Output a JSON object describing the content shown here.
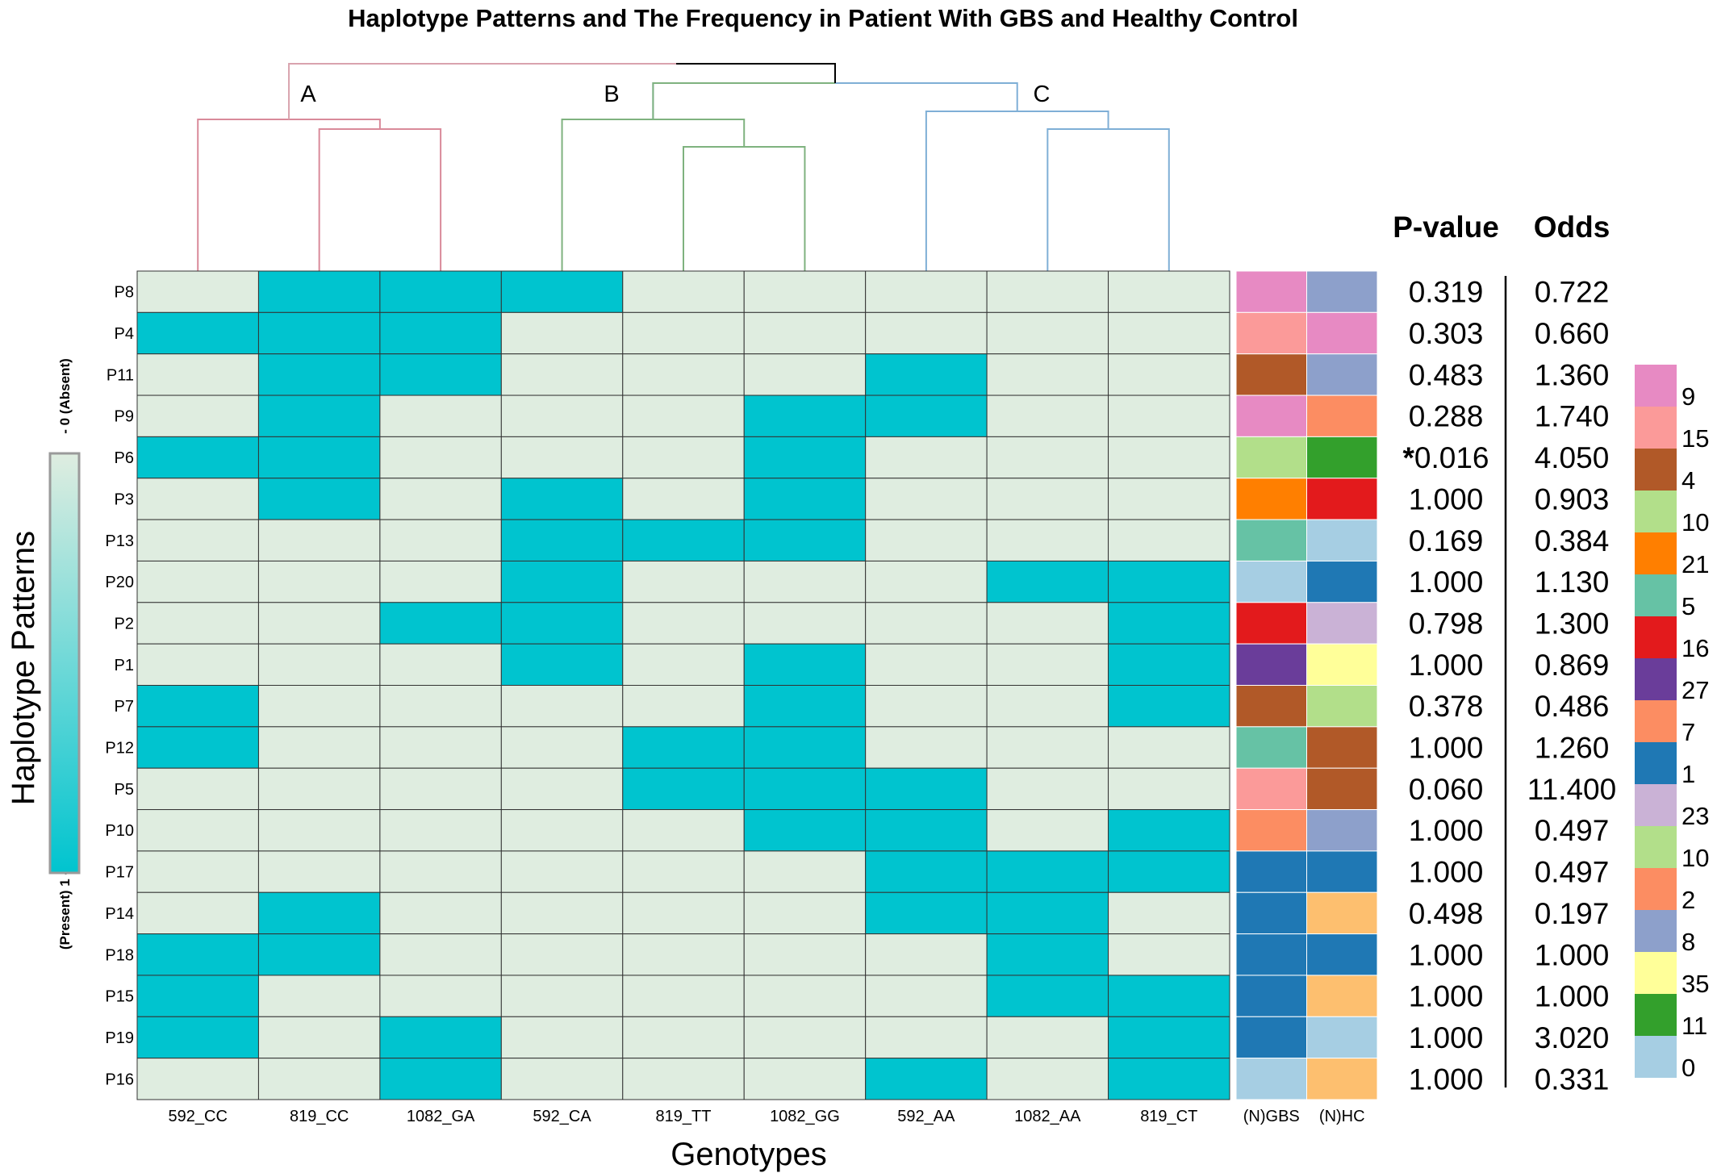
{
  "chart_data": {
    "type": "heatmap",
    "title": "Haplotype Patterns and The Frequency in Patient With GBS and Healthy Control",
    "xlabel": "Genotypes",
    "ylabel": "Haplotype Patterns",
    "columns": [
      "592_CC",
      "819_CC",
      "1082_GA",
      "592_CA",
      "819_TT",
      "1082_GG",
      "592_AA",
      "1082_AA",
      "819_CT"
    ],
    "rows": [
      "P8",
      "P4",
      "P11",
      "P9",
      "P6",
      "P3",
      "P13",
      "P20",
      "P2",
      "P1",
      "P7",
      "P12",
      "P5",
      "P10",
      "P17",
      "P14",
      "P18",
      "P15",
      "P19",
      "P16"
    ],
    "matrix": [
      [
        0,
        1,
        1,
        1,
        0,
        0,
        0,
        0,
        0
      ],
      [
        1,
        1,
        1,
        0,
        0,
        0,
        0,
        0,
        0
      ],
      [
        0,
        1,
        1,
        0,
        0,
        0,
        1,
        0,
        0
      ],
      [
        0,
        1,
        0,
        0,
        0,
        1,
        1,
        0,
        0
      ],
      [
        1,
        1,
        0,
        0,
        0,
        1,
        0,
        0,
        0
      ],
      [
        0,
        1,
        0,
        1,
        0,
        1,
        0,
        0,
        0
      ],
      [
        0,
        0,
        0,
        1,
        1,
        1,
        0,
        0,
        0
      ],
      [
        0,
        0,
        0,
        1,
        0,
        0,
        0,
        1,
        1
      ],
      [
        0,
        0,
        1,
        1,
        0,
        0,
        0,
        0,
        1
      ],
      [
        0,
        0,
        0,
        1,
        0,
        1,
        0,
        0,
        1
      ],
      [
        1,
        0,
        0,
        0,
        0,
        1,
        0,
        0,
        1
      ],
      [
        1,
        0,
        0,
        0,
        1,
        1,
        0,
        0,
        0
      ],
      [
        0,
        0,
        0,
        0,
        1,
        1,
        1,
        0,
        0
      ],
      [
        0,
        0,
        0,
        0,
        0,
        1,
        1,
        0,
        1
      ],
      [
        0,
        0,
        0,
        0,
        0,
        0,
        1,
        1,
        1
      ],
      [
        0,
        1,
        0,
        0,
        0,
        0,
        1,
        1,
        0
      ],
      [
        1,
        1,
        0,
        0,
        0,
        0,
        0,
        1,
        0
      ],
      [
        1,
        0,
        0,
        0,
        0,
        0,
        0,
        1,
        1
      ],
      [
        1,
        0,
        1,
        0,
        0,
        0,
        0,
        0,
        1
      ],
      [
        0,
        0,
        1,
        0,
        0,
        0,
        1,
        0,
        1
      ]
    ],
    "scale": {
      "present_label": "(Present) 1 -",
      "absent_label": "- 0 (Absent)",
      "present_color": "#00C4CF",
      "absent_color": "#DFEDE0"
    },
    "clusters": [
      {
        "label": "A",
        "color": "#D98A9A"
      },
      {
        "label": "B",
        "color": "#7FB27F"
      },
      {
        "label": "C",
        "color": "#7FAFD6"
      }
    ],
    "count_columns": [
      "(N)GBS",
      "(N)HC"
    ],
    "gbs_counts": [
      9,
      15,
      4,
      9,
      10,
      21,
      5,
      0,
      16,
      27,
      4,
      5,
      15,
      2,
      1,
      1,
      1,
      1,
      1,
      0
    ],
    "hc_counts": [
      8,
      9,
      8,
      2,
      11,
      16,
      0,
      1,
      23,
      35,
      10,
      4,
      4,
      8,
      1,
      12,
      1,
      12,
      0,
      12
    ],
    "pvalue_header": "P-value",
    "odds_header": "Odds",
    "pvalues": [
      "0.319",
      "0.303",
      "0.483",
      "0.288",
      "*0.016",
      "1.000",
      "0.169",
      "1.000",
      "0.798",
      "1.000",
      "0.378",
      "1.000",
      "0.060",
      "1.000",
      "1.000",
      "0.498",
      "1.000",
      "1.000",
      "1.000",
      "1.000"
    ],
    "odds": [
      "0.722",
      "0.660",
      "1.360",
      "1.740",
      "4.050",
      "0.903",
      "0.384",
      "1.130",
      "1.300",
      "0.869",
      "0.486",
      "1.260",
      "11.400",
      "0.497",
      "0.497",
      "0.197",
      "1.000",
      "1.000",
      "3.020",
      "0.331"
    ],
    "count_legend": [
      {
        "label": "9",
        "color": "#E78AC3"
      },
      {
        "label": "15",
        "color": "#FB9A99"
      },
      {
        "label": "4",
        "color": "#B15928"
      },
      {
        "label": "10",
        "color": "#B2DF8A"
      },
      {
        "label": "21",
        "color": "#FF7F00"
      },
      {
        "label": "5",
        "color": "#66C2A5"
      },
      {
        "label": "16",
        "color": "#E31A1C"
      },
      {
        "label": "27",
        "color": "#6A3D9A"
      },
      {
        "label": "7",
        "color": "#FC8D62"
      },
      {
        "label": "1",
        "color": "#1F78B4"
      },
      {
        "label": "23",
        "color": "#CAB2D6"
      },
      {
        "label": "10",
        "color": "#B2DF8A"
      },
      {
        "label": "2",
        "color": "#FC8D62"
      },
      {
        "label": "8",
        "color": "#8DA0CB"
      },
      {
        "label": "35",
        "color": "#FFFF99"
      },
      {
        "label": "11",
        "color": "#33A02C"
      },
      {
        "label": "0",
        "color": "#A6CEE3"
      }
    ],
    "count_colors": {
      "0": "#A6CEE3",
      "1": "#1F78B4",
      "2": "#FC8D62",
      "4": "#B15928",
      "5": "#66C2A5",
      "8": "#8DA0CB",
      "9": "#E78AC3",
      "10": "#B2DF8A",
      "11": "#33A02C",
      "12": "#FDBF6F",
      "15": "#FB9A99",
      "16": "#E31A1C",
      "21": "#FF7F00",
      "23": "#CAB2D6",
      "27": "#6A3D9A",
      "35": "#FFFF99"
    }
  }
}
